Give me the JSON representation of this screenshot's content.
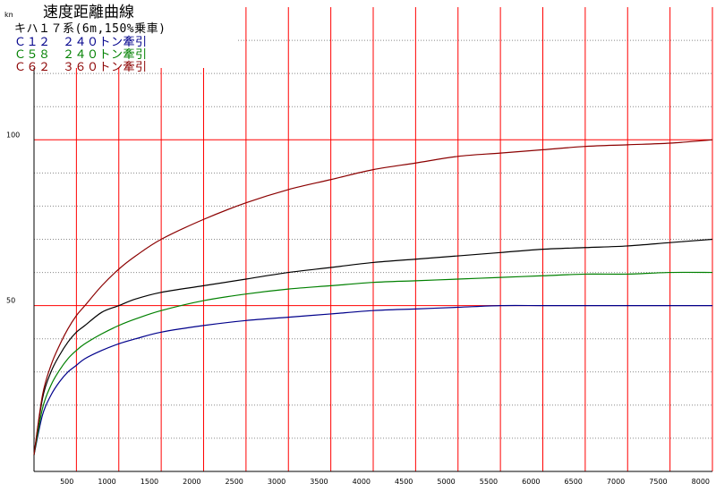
{
  "chart_data": {
    "type": "line",
    "title": "速度距離曲線",
    "ylabel": "km/h",
    "xlabel": "",
    "xlim": [
      0,
      8000
    ],
    "ylim": [
      0,
      140
    ],
    "grid": true,
    "x_ticks": [
      500,
      1000,
      1500,
      2000,
      2500,
      3000,
      3500,
      4000,
      4500,
      5000,
      5500,
      6000,
      6500,
      7000,
      7500,
      8000
    ],
    "y_ticks": [
      50,
      100
    ],
    "legend_position": "top-left",
    "series": [
      {
        "name": "キハ１７系(6m,150%乗車)",
        "color": "#000000",
        "x": [
          0,
          100,
          200,
          300,
          400,
          500,
          600,
          800,
          1000,
          1200,
          1500,
          2000,
          2500,
          3000,
          3500,
          4000,
          4500,
          5000,
          5500,
          6000,
          6500,
          7000,
          7500,
          8000
        ],
        "y": [
          5,
          22,
          30,
          35,
          39,
          42,
          44,
          48,
          50,
          52,
          54,
          56,
          58,
          60,
          61.5,
          63,
          64,
          65,
          66,
          67,
          67.5,
          68,
          69,
          70
        ]
      },
      {
        "name": "Ｃ１２　２４０トン牽引",
        "color": "#00008b",
        "x": [
          0,
          100,
          200,
          300,
          400,
          500,
          600,
          800,
          1000,
          1200,
          1500,
          2000,
          2500,
          3000,
          3500,
          4000,
          4500,
          5000,
          5500,
          6000,
          6500,
          7000,
          7500,
          8000
        ],
        "y": [
          5,
          17,
          23,
          27,
          30,
          32,
          34,
          36.5,
          38.5,
          40,
          42,
          44,
          45.5,
          46.5,
          47.5,
          48.5,
          49,
          49.5,
          50,
          50,
          50,
          50,
          50,
          50
        ]
      },
      {
        "name": "Ｃ５８　２４０トン牽引",
        "color": "#008000",
        "x": [
          0,
          100,
          200,
          300,
          400,
          500,
          600,
          800,
          1000,
          1200,
          1500,
          2000,
          2500,
          3000,
          3500,
          4000,
          4500,
          5000,
          5500,
          6000,
          6500,
          7000,
          7500,
          8000
        ],
        "y": [
          5,
          19,
          26,
          30.5,
          34,
          36.5,
          38.5,
          41.5,
          44,
          46,
          48.5,
          51.5,
          53.5,
          55,
          56,
          57,
          57.5,
          58,
          58.5,
          59,
          59.5,
          59.5,
          60,
          60
        ]
      },
      {
        "name": "Ｃ６２　３６０トン牽引",
        "color": "#8b0000",
        "x": [
          0,
          100,
          200,
          300,
          400,
          500,
          600,
          800,
          1000,
          1200,
          1500,
          2000,
          2500,
          3000,
          3500,
          4000,
          4500,
          5000,
          5500,
          6000,
          6500,
          7000,
          7500,
          8000
        ],
        "y": [
          5,
          23,
          32,
          38,
          43,
          47,
          50,
          56,
          61,
          65,
          70,
          76,
          81,
          85,
          88,
          91,
          93,
          95,
          96,
          97,
          98,
          98.5,
          99,
          100
        ]
      }
    ]
  },
  "colors": {
    "major_grid": "#ff0000",
    "minor_grid": "#888888",
    "axis": "#000000",
    "background": "#ffffff"
  }
}
